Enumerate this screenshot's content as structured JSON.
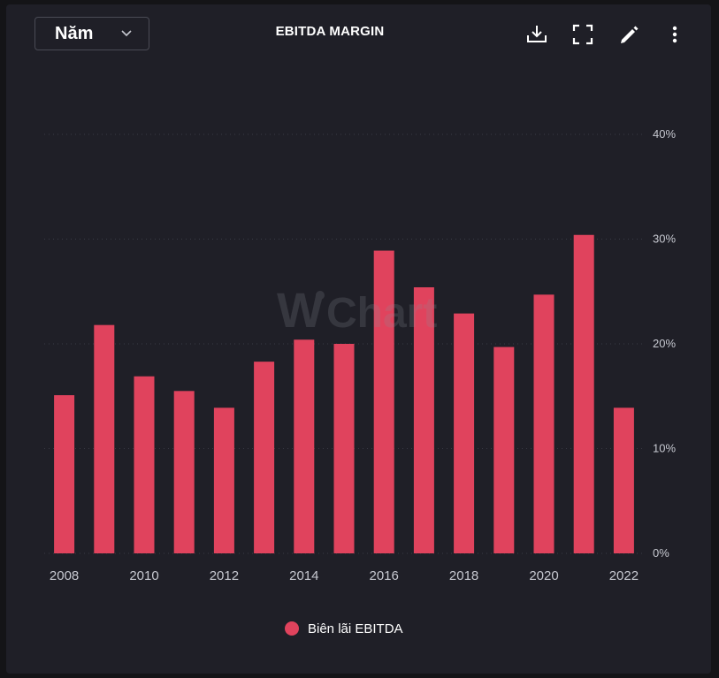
{
  "header": {
    "period_label": "Năm",
    "period_icon": "chevron-down-icon",
    "toolbar_icons": [
      "download-icon",
      "fullscreen-icon",
      "edit-pencil-icon",
      "more-vertical-icon"
    ]
  },
  "colors": {
    "background": "#1f1f27",
    "bar": "#e0435d",
    "grid": "#3a3b46",
    "axis_text": "#c7c9d1"
  },
  "chart_data": {
    "type": "bar",
    "title": "EBITDA MARGIN",
    "categories": [
      "2008",
      "2009",
      "2010",
      "2011",
      "2012",
      "2013",
      "2014",
      "2015",
      "2016",
      "2017",
      "2018",
      "2019",
      "2020",
      "2021",
      "2022"
    ],
    "x_tick_labels": [
      "2008",
      "2010",
      "2012",
      "2014",
      "2016",
      "2018",
      "2020",
      "2022"
    ],
    "series": [
      {
        "name": "Biên lãi EBITDA",
        "values": [
          15.1,
          21.8,
          16.9,
          15.5,
          13.9,
          18.3,
          20.4,
          20.0,
          28.9,
          25.4,
          22.9,
          19.7,
          24.7,
          30.4,
          13.9
        ]
      }
    ],
    "y_ticks": [
      "0%",
      "10%",
      "20%",
      "30%",
      "40%"
    ],
    "ylim": [
      0,
      40
    ],
    "y_axis_side": "right",
    "grid": true,
    "legend_position": "bottom",
    "watermark": "WiChart"
  }
}
